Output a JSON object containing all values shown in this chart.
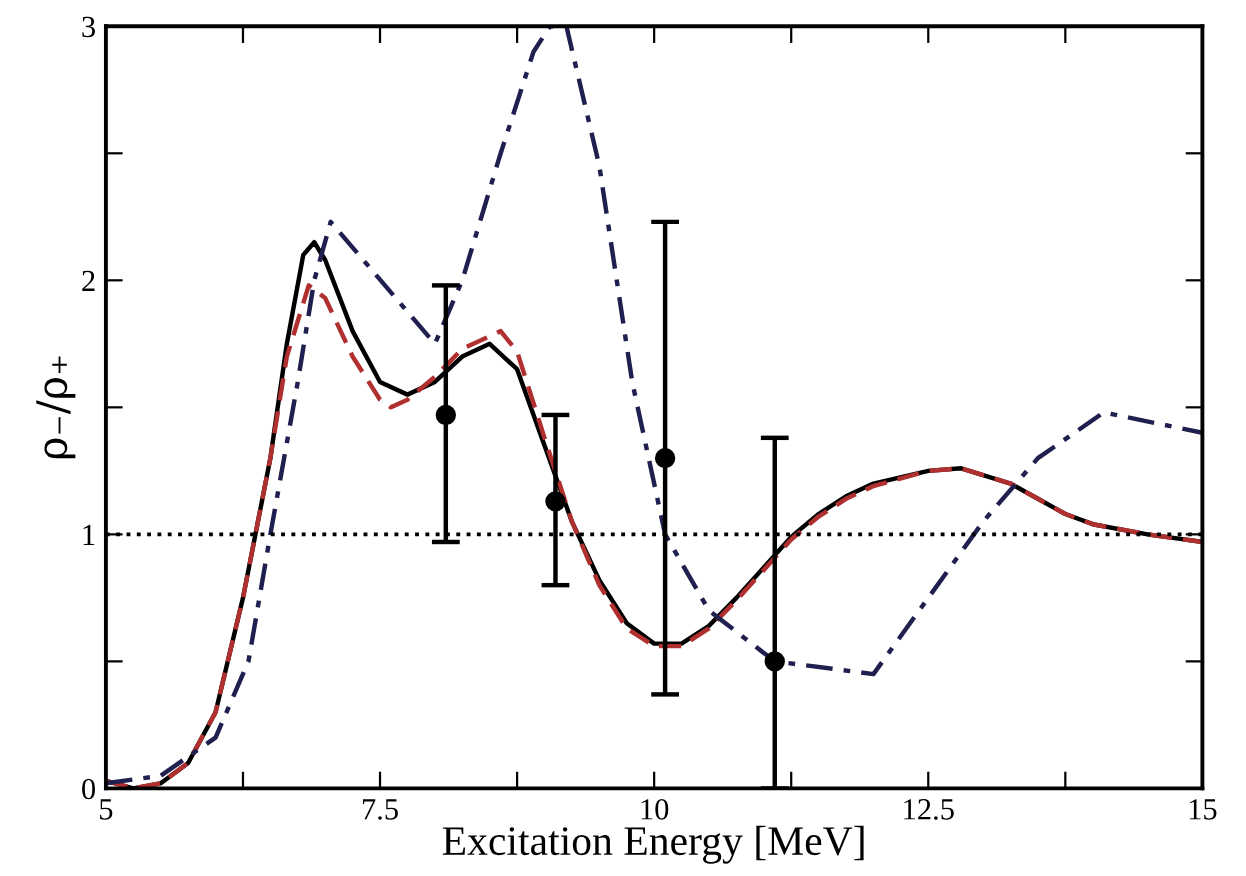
{
  "chart_data": {
    "type": "line",
    "xlabel": "Excitation Energy [MeV]",
    "ylabel": "ρ₋/ρ₊",
    "xlim": [
      5,
      15
    ],
    "ylim": [
      0,
      3
    ],
    "xticks": [
      5,
      {
        "value": 6.25,
        "label": null
      },
      7.5,
      {
        "value": 8.75,
        "label": null
      },
      10,
      {
        "value": 11.25,
        "label": null
      },
      12.5,
      {
        "value": 13.75,
        "label": null
      },
      15
    ],
    "yticks": [
      0,
      {
        "value": 0.5,
        "label": null
      },
      1,
      {
        "value": 1.5,
        "label": null
      },
      2,
      {
        "value": 2.5,
        "label": null
      },
      3
    ],
    "grid": false,
    "legend": false,
    "ref_lines": [
      {
        "axis": "y",
        "value": 1,
        "color": "#000000",
        "line_style": "dotted"
      }
    ],
    "series": [
      {
        "color": "#000000",
        "line_style": "solid",
        "x": [
          5,
          5.25,
          5.5,
          5.75,
          6,
          6.25,
          6.5,
          6.65,
          6.8,
          6.9,
          7.0,
          7.25,
          7.5,
          7.75,
          8.0,
          8.25,
          8.5,
          8.75,
          9.0,
          9.25,
          9.5,
          9.75,
          10.0,
          10.25,
          10.5,
          10.75,
          11.0,
          11.25,
          11.5,
          11.75,
          12.0,
          12.5,
          12.8,
          13.25,
          13.5,
          13.75,
          14.0,
          14.5,
          15
        ],
        "values": [
          0.03,
          0.0,
          0.02,
          0.1,
          0.3,
          0.75,
          1.3,
          1.75,
          2.1,
          2.15,
          2.08,
          1.8,
          1.6,
          1.55,
          1.6,
          1.7,
          1.75,
          1.65,
          1.35,
          1.05,
          0.82,
          0.65,
          0.57,
          0.57,
          0.64,
          0.75,
          0.87,
          0.99,
          1.08,
          1.15,
          1.2,
          1.25,
          1.26,
          1.2,
          1.14,
          1.08,
          1.04,
          1.0,
          0.97
        ]
      },
      {
        "color": "#b03030",
        "line_style": "dashed",
        "x": [
          5,
          5.25,
          5.5,
          5.75,
          6,
          6.25,
          6.5,
          6.65,
          6.85,
          7.0,
          7.25,
          7.5,
          7.6,
          7.75,
          8.0,
          8.25,
          8.6,
          8.75,
          9.0,
          9.25,
          9.5,
          9.75,
          10.0,
          10.25,
          10.5,
          10.75,
          11.0,
          11.25,
          11.5,
          11.75,
          12.0,
          12.5,
          12.8,
          13.25,
          13.5,
          13.75,
          14.0,
          14.5,
          15
        ],
        "values": [
          0.03,
          0.0,
          0.02,
          0.1,
          0.3,
          0.75,
          1.3,
          1.7,
          1.98,
          1.93,
          1.7,
          1.53,
          1.5,
          1.53,
          1.62,
          1.73,
          1.8,
          1.72,
          1.38,
          1.05,
          0.8,
          0.63,
          0.56,
          0.56,
          0.63,
          0.74,
          0.86,
          0.98,
          1.07,
          1.14,
          1.19,
          1.25,
          1.26,
          1.2,
          1.14,
          1.08,
          1.04,
          1.0,
          0.97
        ]
      },
      {
        "color": "#202050",
        "line_style": "dashdot",
        "x": [
          5,
          5.5,
          6.0,
          6.3,
          6.5,
          6.75,
          6.9,
          7.05,
          8.0,
          8.25,
          8.6,
          8.9,
          9.05,
          9.2,
          9.5,
          9.8,
          10.1,
          10.5,
          11.1,
          12.0,
          12.5,
          13.0,
          13.5,
          14.1,
          15
        ],
        "values": [
          0.02,
          0.05,
          0.2,
          0.5,
          1.0,
          1.6,
          2.0,
          2.23,
          1.75,
          2.0,
          2.5,
          2.9,
          3.0,
          3.0,
          2.45,
          1.6,
          1.0,
          0.7,
          0.5,
          0.45,
          0.75,
          1.05,
          1.3,
          1.48,
          1.4
        ]
      },
      {
        "type": "scatter",
        "color": "#000000",
        "marker": "circle",
        "x": [
          8.1,
          9.1,
          10.1,
          11.1
        ],
        "values": [
          1.47,
          1.13,
          1.3,
          0.5
        ],
        "errors": [
          [
            0.97,
            1.98
          ],
          [
            0.8,
            1.47
          ],
          [
            0.37,
            2.23
          ],
          [
            0,
            1.38
          ]
        ]
      }
    ]
  }
}
